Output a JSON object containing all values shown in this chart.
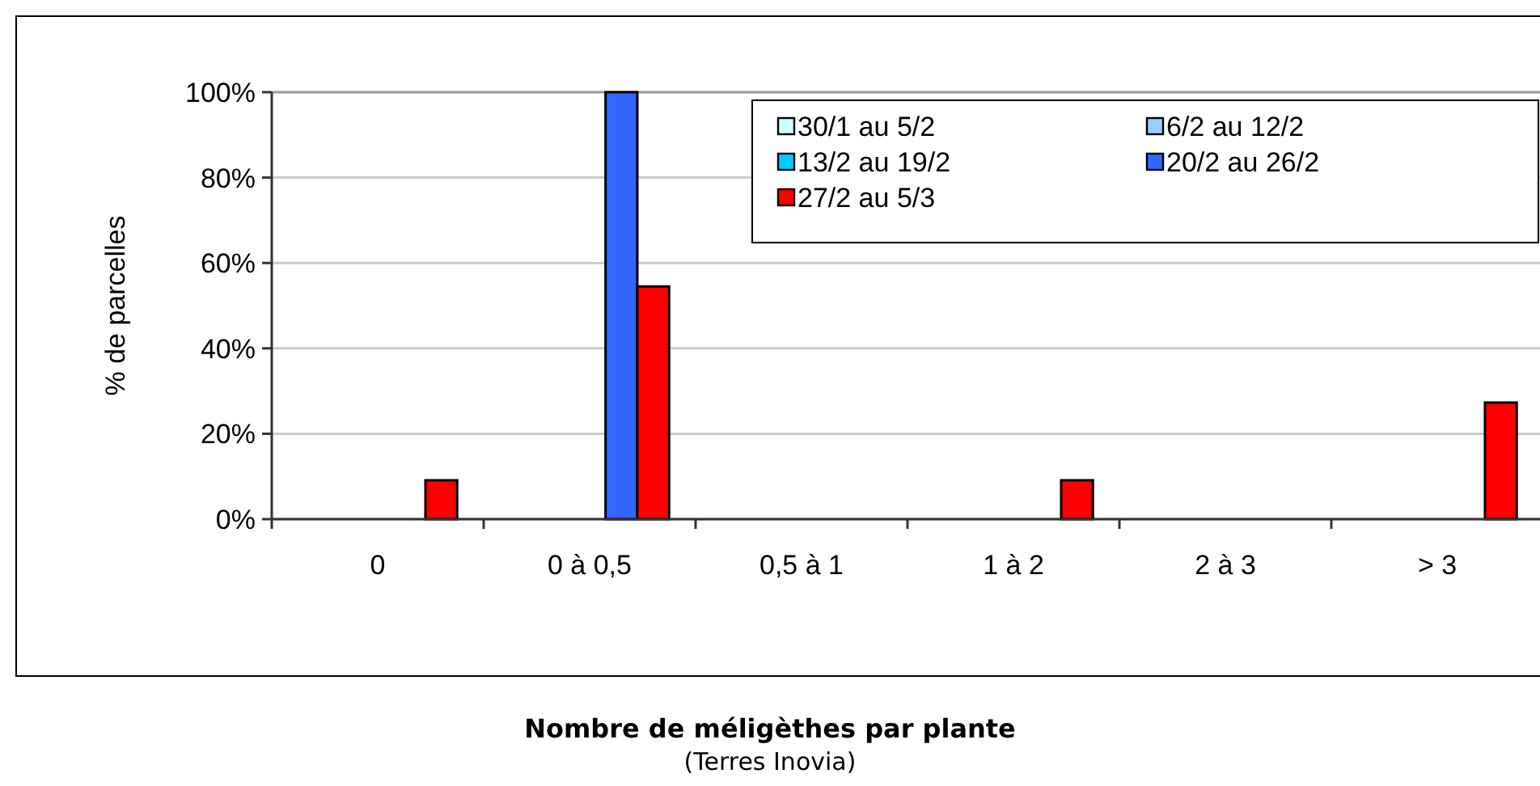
{
  "chart_data": {
    "type": "bar",
    "ylabel": "% de parcelles",
    "annotations": [
      "Nombre de méligèthes par plante",
      "(Terres Inovia)"
    ],
    "categories": [
      "0",
      "0 à 0,5",
      "0,5 à 1",
      "1 à 2",
      "2 à 3",
      "> 3"
    ],
    "series": [
      {
        "name": "30/1 au 5/2",
        "color": "#ccffff",
        "values": [
          null,
          null,
          null,
          null,
          null,
          null
        ]
      },
      {
        "name": "6/2 au 12/2",
        "color": "#99ccff",
        "values": [
          null,
          null,
          null,
          null,
          null,
          null
        ]
      },
      {
        "name": "13/2 au 19/2",
        "color": "#00ccff",
        "values": [
          null,
          null,
          null,
          null,
          null,
          null
        ]
      },
      {
        "name": "20/2 au 26/2",
        "color": "#3366ff",
        "values": [
          null,
          100,
          null,
          null,
          null,
          null
        ]
      },
      {
        "name": "27/2 au 5/3",
        "color": "#ff0000",
        "values": [
          9.1,
          54.5,
          null,
          9.1,
          null,
          27.3
        ]
      }
    ],
    "ylim": [
      0,
      100
    ],
    "yticks": [
      {
        "value": 0,
        "label": "0%"
      },
      {
        "value": 20,
        "label": "20%"
      },
      {
        "value": 40,
        "label": "40%"
      },
      {
        "value": 60,
        "label": "60%"
      },
      {
        "value": 80,
        "label": "80%"
      },
      {
        "value": 100,
        "label": "100%"
      }
    ],
    "grid": "y",
    "legend": "top right"
  }
}
